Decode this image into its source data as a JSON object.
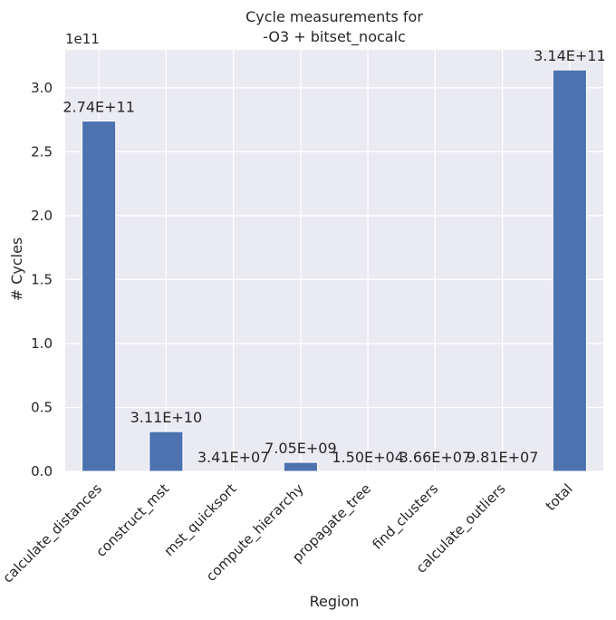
{
  "chart_data": {
    "type": "bar",
    "title_lines": [
      "Cycle measurements for",
      "-O3 + bitset_nocalc"
    ],
    "xlabel": "Region",
    "ylabel": "# Cycles",
    "y_offset_label": "1e11",
    "categories": [
      "calculate_distances",
      "construct_mst",
      "mst_quicksort",
      "compute_hierarchy",
      "propagate_tree",
      "find_clusters",
      "calculate_outliers",
      "total"
    ],
    "values": [
      274000000000,
      31100000000,
      34100000,
      7050000000,
      15000,
      36600000,
      98100000,
      314000000000
    ],
    "value_labels": [
      "2.74E+11",
      "3.11E+10",
      "3.41E+07",
      "7.05E+09",
      "1.50E+04",
      "3.66E+07",
      "9.81E+07",
      "3.14E+11"
    ],
    "y_ticks": [
      0.0,
      0.5,
      1.0,
      1.5,
      2.0,
      2.5,
      3.0
    ],
    "y_tick_labels": [
      "0.0",
      "0.5",
      "1.0",
      "1.5",
      "2.0",
      "2.5",
      "3.0"
    ],
    "y_tick_scale": 100000000000,
    "ylim": [
      0,
      329700000000
    ],
    "grid": true,
    "legend": "none",
    "colors": {
      "bar": "#4c72b0",
      "background": "#eaeaf2",
      "grid": "#ffffff",
      "text": "#262626"
    }
  }
}
